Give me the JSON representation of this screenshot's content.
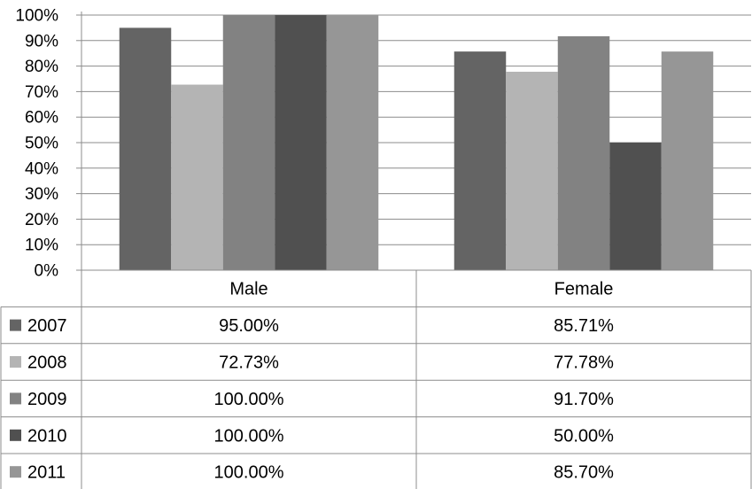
{
  "chart_data": {
    "type": "bar",
    "categories": [
      "Male",
      "Female"
    ],
    "series": [
      {
        "name": "2007",
        "values": [
          95.0,
          85.71
        ],
        "label_values": [
          "95.00%",
          "85.71%"
        ],
        "color": "#646464"
      },
      {
        "name": "2008",
        "values": [
          72.73,
          77.78
        ],
        "label_values": [
          "72.73%",
          "77.78%"
        ],
        "color": "#b4b4b4"
      },
      {
        "name": "2009",
        "values": [
          100.0,
          91.7
        ],
        "label_values": [
          "100.00%",
          "91.70%"
        ],
        "color": "#828282"
      },
      {
        "name": "2010",
        "values": [
          100.0,
          50.0
        ],
        "label_values": [
          "100.00%",
          "50.00%"
        ],
        "color": "#505050"
      },
      {
        "name": "2011",
        "values": [
          100.0,
          85.7
        ],
        "label_values": [
          "100.00%",
          "85.70%"
        ],
        "color": "#969696"
      }
    ],
    "y_ticks": [
      "0%",
      "10%",
      "20%",
      "30%",
      "40%",
      "50%",
      "60%",
      "70%",
      "80%",
      "90%",
      "100%"
    ],
    "ylim": [
      0,
      100
    ],
    "grid": true,
    "legend": "data-table-left",
    "data_table": true
  }
}
